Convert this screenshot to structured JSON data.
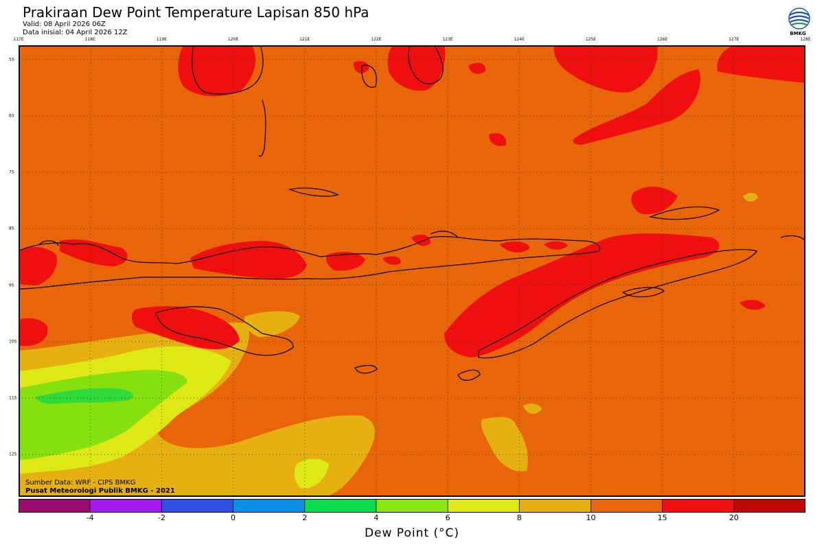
{
  "header": {
    "title": "Prakiraan Dew Point Temperature Lapisan 850 hPa",
    "valid": "Valid: 08 April 2026 06Z",
    "init": "Data inisial: 04 April 2026 12Z"
  },
  "logo": {
    "text": "BMKG",
    "icon": "bmkg-logo-icon"
  },
  "map": {
    "lon_labels": [
      "117E",
      "118E",
      "119E",
      "120E",
      "121E",
      "122E",
      "123E",
      "124E",
      "125E",
      "126E",
      "127E",
      "128E"
    ],
    "lat_labels": [
      "5S",
      "6S",
      "7S",
      "8S",
      "9S",
      "10S",
      "11S",
      "12S"
    ],
    "lon_range": [
      117,
      128
    ],
    "lat_range": [
      -4.75,
      -12.75
    ],
    "grid": "dotted",
    "colors": {
      "orange": "#E8650A",
      "red": "#F00F0F",
      "dark_orange": "#E6B010",
      "yellow": "#DDE815",
      "light_green": "#86E00E",
      "green": "#2EDB3A",
      "coastline": "#000000"
    }
  },
  "credits": {
    "source": "Sumber Data: WRF - CIPS BMKG",
    "publisher": "Pusat Meteorologi Publik BMKG - 2021"
  },
  "colorbar": {
    "title": "Dew Point (°C)",
    "ticks": [
      "-4",
      "-2",
      "0",
      "2",
      "4",
      "6",
      "8",
      "10",
      "15",
      "20"
    ],
    "colors": [
      "#9C0A6E",
      "#A21AF0",
      "#2E4FE0",
      "#0A8FE6",
      "#0ADB4A",
      "#8AE60E",
      "#DDE815",
      "#E6B010",
      "#E8650A",
      "#F00F0F",
      "#C00A0A"
    ]
  }
}
